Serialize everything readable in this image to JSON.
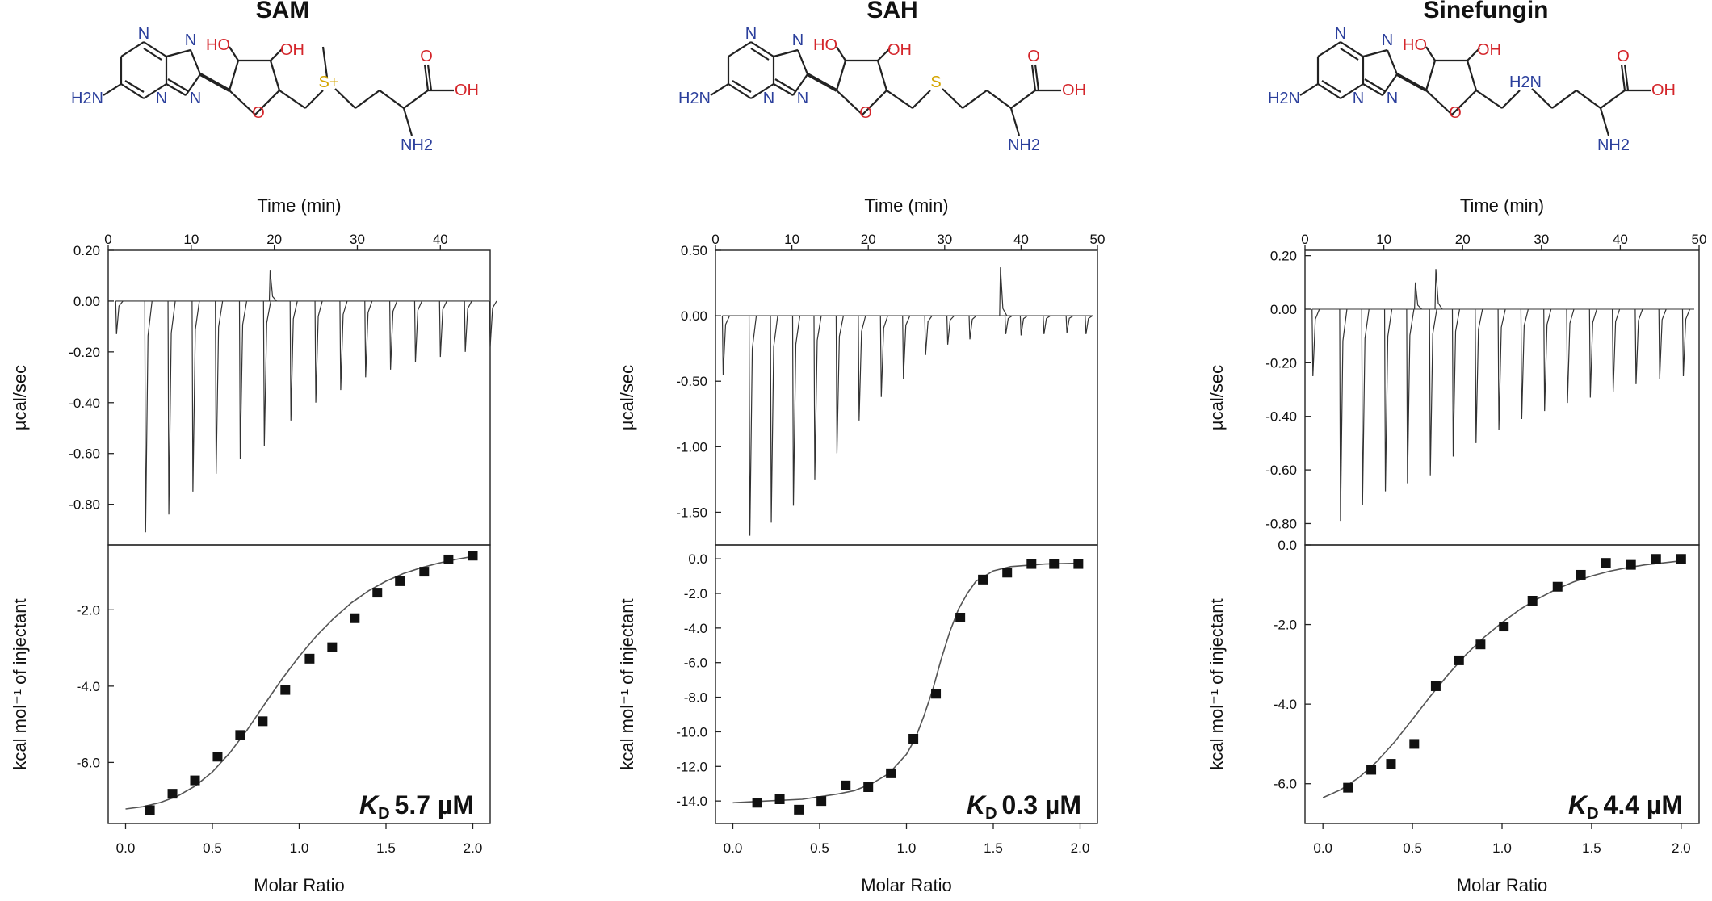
{
  "chart_data": [
    {
      "type": "scatter",
      "compound": "SAM",
      "title": "SAM",
      "top_xlabel": "Time (min)",
      "top_xticks": [
        0,
        10,
        20,
        30,
        40
      ],
      "top_xtick_labels": [
        "0",
        "10",
        "20",
        "30",
        "40"
      ],
      "top_xlim": [
        0,
        46
      ],
      "top_ylabel": "µcal/sec",
      "top_ylim": [
        -0.96,
        0.2
      ],
      "top_yticks": [
        0.2,
        0.0,
        -0.2,
        -0.4,
        -0.6,
        -0.8
      ],
      "top_ytick_labels": [
        "0.20",
        "0.00",
        "-0.20",
        "-0.40",
        "-0.60",
        "-0.80"
      ],
      "injection_times": [
        1,
        4.5,
        7.3,
        10.2,
        13.0,
        15.9,
        18.8,
        19.5,
        22.0,
        25.0,
        28.0,
        31.0,
        34.0,
        37.0,
        40.0,
        43.0,
        46.0
      ],
      "injection_peaks": [
        -0.13,
        -0.91,
        -0.84,
        -0.75,
        -0.68,
        -0.62,
        -0.57,
        0.12,
        -0.47,
        -0.4,
        -0.35,
        -0.3,
        -0.27,
        -0.24,
        -0.22,
        -0.2,
        -0.18
      ],
      "bottom_xlabel": "Molar Ratio",
      "bottom_xticks": [
        0.0,
        0.5,
        1.0,
        1.5,
        2.0
      ],
      "bottom_xtick_labels": [
        "0.0",
        "0.5",
        "1.0",
        "1.5",
        "2.0"
      ],
      "bottom_xlim": [
        -0.1,
        2.1
      ],
      "bottom_ylabel": "kcal mol⁻¹ of injectant",
      "bottom_ylim": [
        -7.6,
        -0.3
      ],
      "bottom_yticks": [
        -2.0,
        -4.0,
        -6.0
      ],
      "bottom_ytick_labels": [
        "-2.0",
        "-4.0",
        "-6.0"
      ],
      "points_x": [
        0.14,
        0.27,
        0.4,
        0.53,
        0.66,
        0.79,
        0.92,
        1.06,
        1.19,
        1.32,
        1.45,
        1.58,
        1.72,
        1.86,
        2.0
      ],
      "points_y": [
        -7.25,
        -6.82,
        -6.47,
        -5.85,
        -5.28,
        -4.92,
        -4.1,
        -3.28,
        -2.98,
        -2.22,
        -1.55,
        -1.25,
        -1.0,
        -0.68,
        -0.58
      ],
      "fit_x": [
        0.0,
        0.1,
        0.2,
        0.3,
        0.4,
        0.5,
        0.6,
        0.7,
        0.8,
        0.9,
        1.0,
        1.1,
        1.2,
        1.3,
        1.4,
        1.5,
        1.6,
        1.7,
        1.8,
        1.9,
        2.0
      ],
      "fit_y": [
        -7.22,
        -7.16,
        -7.05,
        -6.88,
        -6.62,
        -6.25,
        -5.75,
        -5.15,
        -4.48,
        -3.82,
        -3.22,
        -2.68,
        -2.22,
        -1.82,
        -1.5,
        -1.25,
        -1.05,
        -0.9,
        -0.78,
        -0.68,
        -0.6
      ],
      "kd_symbol": "K",
      "kd_subscript": "D",
      "kd_text": "5.7 µM"
    },
    {
      "type": "scatter",
      "compound": "SAH",
      "title": "SAH",
      "top_xlabel": "Time (min)",
      "top_xticks": [
        0,
        10,
        20,
        30,
        40,
        50
      ],
      "top_xtick_labels": [
        "0",
        "10",
        "20",
        "30",
        "40",
        "50"
      ],
      "top_xlim": [
        0,
        50
      ],
      "top_ylabel": "µcal/sec",
      "top_ylim": [
        -1.75,
        0.5
      ],
      "top_yticks": [
        0.5,
        0.0,
        -0.5,
        -1.0,
        -1.5
      ],
      "top_ytick_labels": [
        "0.50",
        "0.00",
        "-0.50",
        "-1.00",
        "-1.50"
      ],
      "injection_times": [
        1,
        4.5,
        7.3,
        10.2,
        13.0,
        15.9,
        18.8,
        21.7,
        24.6,
        27.5,
        30.4,
        33.3,
        37.3,
        38.0,
        40.0,
        43.0,
        46.0,
        48.5
      ],
      "injection_peaks": [
        -0.45,
        -1.68,
        -1.58,
        -1.45,
        -1.25,
        -1.05,
        -0.8,
        -0.62,
        -0.48,
        -0.3,
        -0.22,
        -0.18,
        0.37,
        -0.14,
        -0.15,
        -0.14,
        -0.13,
        -0.14
      ],
      "bottom_xlabel": "Molar Ratio",
      "bottom_xticks": [
        0.0,
        0.5,
        1.0,
        1.5,
        2.0
      ],
      "bottom_xtick_labels": [
        "0.0",
        "0.5",
        "1.0",
        "1.5",
        "2.0"
      ],
      "bottom_xlim": [
        -0.1,
        2.1
      ],
      "bottom_ylabel": "kcal mol⁻¹ of injectant",
      "bottom_ylim": [
        -15.3,
        0.8
      ],
      "bottom_yticks": [
        0.0,
        -2.0,
        -4.0,
        -6.0,
        -8.0,
        -10.0,
        -12.0,
        -14.0
      ],
      "bottom_ytick_labels": [
        "0.0",
        "-2.0",
        "-4.0",
        "-6.0",
        "-8.0",
        "-10.0",
        "-12.0",
        "-14.0"
      ],
      "points_x": [
        0.14,
        0.27,
        0.38,
        0.51,
        0.65,
        0.78,
        0.91,
        1.04,
        1.17,
        1.31,
        1.44,
        1.58,
        1.72,
        1.85,
        1.99
      ],
      "points_y": [
        -14.1,
        -13.9,
        -14.5,
        -14.0,
        -13.1,
        -13.2,
        -12.4,
        -10.4,
        -7.8,
        -3.4,
        -1.2,
        -0.8,
        -0.3,
        -0.3,
        -0.3
      ],
      "fit_x": [
        0.0,
        0.2,
        0.4,
        0.6,
        0.7,
        0.8,
        0.9,
        1.0,
        1.05,
        1.1,
        1.15,
        1.2,
        1.25,
        1.3,
        1.35,
        1.4,
        1.5,
        1.6,
        1.8,
        2.0
      ],
      "fit_y": [
        -14.1,
        -14.0,
        -13.9,
        -13.6,
        -13.4,
        -13.0,
        -12.4,
        -11.3,
        -10.4,
        -9.1,
        -7.6,
        -5.8,
        -4.2,
        -2.9,
        -2.0,
        -1.3,
        -0.7,
        -0.45,
        -0.3,
        -0.25
      ],
      "kd_symbol": "K",
      "kd_subscript": "D",
      "kd_text": "0.3 µM"
    },
    {
      "type": "scatter",
      "compound": "Sinefungin",
      "title": "Sinefungin",
      "top_xlabel": "Time (min)",
      "top_xticks": [
        0,
        10,
        20,
        30,
        40,
        50
      ],
      "top_xtick_labels": [
        "0",
        "10",
        "20",
        "30",
        "40",
        "50"
      ],
      "top_xlim": [
        0,
        50
      ],
      "top_ylabel": "µcal/sec",
      "top_ylim": [
        -0.88,
        0.22
      ],
      "top_yticks": [
        0.2,
        0.0,
        -0.2,
        -0.4,
        -0.6,
        -0.8
      ],
      "top_ytick_labels": [
        "0.20",
        "0.00",
        "-0.20",
        "-0.40",
        "-0.60",
        "-0.80"
      ],
      "injection_times": [
        1,
        4.5,
        7.3,
        10.2,
        13.0,
        14.0,
        15.9,
        16.6,
        18.8,
        21.7,
        24.6,
        27.5,
        30.4,
        33.3,
        36.2,
        39.1,
        42.0,
        45.0,
        48.0
      ],
      "injection_peaks": [
        -0.25,
        -0.79,
        -0.73,
        -0.68,
        -0.65,
        0.1,
        -0.62,
        0.15,
        -0.55,
        -0.5,
        -0.45,
        -0.41,
        -0.38,
        -0.35,
        -0.33,
        -0.31,
        -0.28,
        -0.26,
        -0.25
      ],
      "bottom_xlabel": "Molar Ratio",
      "bottom_xticks": [
        0.0,
        0.5,
        1.0,
        1.5,
        2.0
      ],
      "bottom_xtick_labels": [
        "0.0",
        "0.5",
        "1.0",
        "1.5",
        "2.0"
      ],
      "bottom_xlim": [
        -0.1,
        2.1
      ],
      "bottom_ylabel": "kcal mol⁻¹ of injectant",
      "bottom_ylim": [
        -7.0,
        0.0
      ],
      "bottom_yticks": [
        0.0,
        -2.0,
        -4.0,
        -6.0
      ],
      "bottom_ytick_labels": [
        "0.0",
        "-2.0",
        "-4.0",
        "-6.0"
      ],
      "points_x": [
        0.14,
        0.27,
        0.38,
        0.51,
        0.63,
        0.76,
        0.88,
        1.01,
        1.17,
        1.31,
        1.44,
        1.58,
        1.72,
        1.86,
        2.0
      ],
      "points_y": [
        -6.1,
        -5.65,
        -5.5,
        -5.0,
        -3.55,
        -2.9,
        -2.5,
        -2.05,
        -1.4,
        -1.05,
        -0.75,
        -0.45,
        -0.5,
        -0.35,
        -0.35
      ],
      "fit_x": [
        0.0,
        0.1,
        0.2,
        0.3,
        0.4,
        0.5,
        0.6,
        0.7,
        0.8,
        0.9,
        1.0,
        1.1,
        1.2,
        1.3,
        1.4,
        1.5,
        1.6,
        1.7,
        1.8,
        1.9,
        2.0
      ],
      "fit_y": [
        -6.35,
        -6.15,
        -5.85,
        -5.45,
        -4.95,
        -4.38,
        -3.8,
        -3.25,
        -2.75,
        -2.32,
        -1.95,
        -1.62,
        -1.35,
        -1.12,
        -0.93,
        -0.78,
        -0.66,
        -0.57,
        -0.5,
        -0.45,
        -0.4
      ],
      "kd_symbol": "K",
      "kd_subscript": "D",
      "kd_text": "4.4 µM"
    }
  ],
  "structures": [
    {
      "atoms": [
        "N",
        "N",
        "N",
        "N",
        "H2N",
        "HO",
        "OH",
        "O",
        "S+",
        "O",
        "OH",
        "NH2"
      ]
    },
    {
      "atoms": [
        "N",
        "N",
        "N",
        "N",
        "H2N",
        "HO",
        "OH",
        "O",
        "S",
        "O",
        "OH",
        "NH2"
      ]
    },
    {
      "atoms": [
        "N",
        "N",
        "N",
        "N",
        "H2N",
        "HO",
        "OH",
        "O",
        "H2N",
        "O",
        "OH",
        "NH2"
      ]
    }
  ]
}
